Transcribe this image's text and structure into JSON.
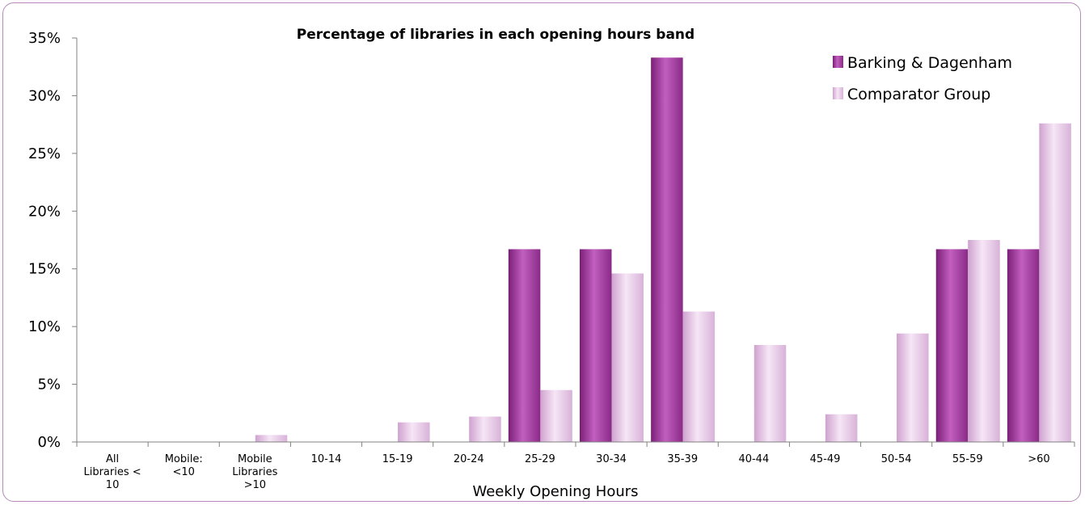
{
  "chart_data": {
    "type": "bar",
    "title": "Percentage of libraries in each opening hours band",
    "xlabel": "Weekly Opening Hours",
    "ylabel": "",
    "ylim": [
      0,
      35
    ],
    "yticks": [
      "0%",
      "5%",
      "10%",
      "15%",
      "20%",
      "25%",
      "30%",
      "35%"
    ],
    "categories": [
      [
        "All",
        "Libraries <",
        "10"
      ],
      [
        "Mobile:",
        "<10"
      ],
      [
        "Mobile",
        "Libraries",
        ">10"
      ],
      [
        "10-14"
      ],
      [
        "15-19"
      ],
      [
        "20-24"
      ],
      [
        "25-29"
      ],
      [
        "30-34"
      ],
      [
        "35-39"
      ],
      [
        "40-44"
      ],
      [
        "45-49"
      ],
      [
        "50-54"
      ],
      [
        "55-59"
      ],
      [
        ">60"
      ]
    ],
    "series": [
      {
        "name": "Barking & Dagenham",
        "color": "#a0409c",
        "values": [
          0,
          0,
          0,
          0,
          0,
          0,
          16.7,
          16.7,
          33.3,
          0,
          0,
          0,
          16.7,
          16.7
        ]
      },
      {
        "name": "Comparator Group",
        "color": "#e0bde0",
        "values": [
          0,
          0,
          0.6,
          0,
          1.7,
          2.2,
          4.5,
          14.6,
          11.3,
          8.4,
          2.4,
          9.4,
          17.5,
          27.6
        ]
      }
    ],
    "grid": false,
    "legend_position": "top-right"
  }
}
